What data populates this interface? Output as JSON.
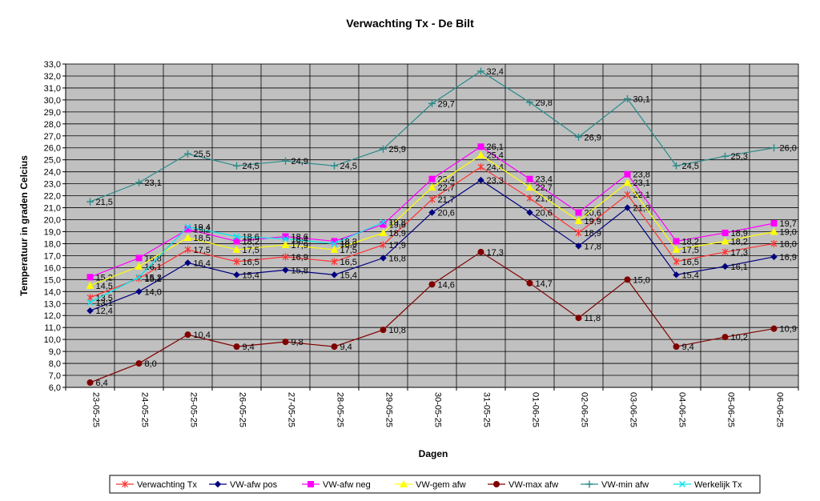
{
  "chart_data": {
    "type": "line",
    "title": "Verwachting Tx - De Bilt",
    "xlabel": "Dagen",
    "ylabel": "Temperatuur in graden Celcius",
    "ylim": [
      6,
      33
    ],
    "grid": true,
    "legend_position": "bottom",
    "plot_background": "#c0c0c0",
    "categories": [
      "23-05-25",
      "24-05-25",
      "25-05-25",
      "26-05-25",
      "27-05-25",
      "28-05-25",
      "29-05-25",
      "30-05-25",
      "31-05-25",
      "01-06-25",
      "02-06-25",
      "03-06-25",
      "04-06-25",
      "05-06-25",
      "06-06-25"
    ],
    "yticks": [
      "6,0",
      "7,0",
      "8,0",
      "9,0",
      "10,0",
      "11,0",
      "12,0",
      "13,0",
      "14,0",
      "15,0",
      "16,0",
      "17,0",
      "18,0",
      "19,0",
      "20,0",
      "21,0",
      "22,0",
      "23,0",
      "24,0",
      "25,0",
      "26,0",
      "27,0",
      "28,0",
      "29,0",
      "30,0",
      "31,0",
      "32,0",
      "33,0"
    ],
    "series": [
      {
        "name": "Verwachting Tx",
        "color": "#ff3333",
        "marker": "star",
        "values": [
          13.5,
          15.1,
          17.5,
          16.5,
          16.9,
          16.5,
          17.9,
          21.7,
          24.4,
          21.8,
          18.9,
          22.1,
          16.5,
          17.3,
          18.0
        ],
        "labels": [
          "13,5",
          "15,1",
          "17,5",
          "16,5",
          "16,9",
          "16,5",
          "17,9",
          "21,7",
          "24,4",
          "21,8",
          "18,9",
          "22,1",
          "16,5",
          "17,3",
          "18,0"
        ]
      },
      {
        "name": "VW-afw pos",
        "color": "#000080",
        "marker": "diamond",
        "values": [
          12.4,
          14.0,
          16.4,
          15.4,
          15.8,
          15.4,
          16.8,
          20.6,
          23.3,
          20.6,
          17.8,
          21.0,
          15.4,
          16.1,
          16.9
        ],
        "labels": [
          "12,4",
          "14,0",
          "16,4",
          "15,4",
          "15,8",
          "15,4",
          "16,8",
          "20,6",
          "23,3",
          "20,6",
          "17,8",
          "21,0",
          "15,4",
          "16,1",
          "16,9"
        ]
      },
      {
        "name": "VW-afw neg",
        "color": "#ff00ff",
        "marker": "square",
        "values": [
          15.2,
          16.8,
          19.2,
          18.2,
          18.6,
          18.2,
          19.6,
          23.4,
          26.1,
          23.4,
          20.6,
          23.8,
          18.2,
          18.9,
          19.7
        ],
        "labels": [
          "15,2",
          "16,8",
          "19,2",
          "18,2",
          "18,6",
          "18,2",
          "19,6",
          "23,4",
          "26,1",
          "23,4",
          "20,6",
          "23,8",
          "18,2",
          "18,9",
          "19,7"
        ]
      },
      {
        "name": "VW-gem afw",
        "color": "#ffff00",
        "marker": "triangle",
        "values": [
          14.5,
          16.1,
          18.5,
          17.5,
          17.9,
          17.5,
          18.9,
          22.7,
          25.4,
          22.7,
          19.9,
          23.1,
          17.5,
          18.2,
          19.0
        ],
        "labels": [
          "14,5",
          "16,1",
          "18,5",
          "17,5",
          "17,9",
          "17,5",
          "18,9",
          "22,7",
          "25,4",
          "22,7",
          "19,9",
          "23,1",
          "17,5",
          "18,2",
          "19,0"
        ]
      },
      {
        "name": "VW-max afw",
        "color": "#800000",
        "marker": "circle",
        "values": [
          6.4,
          8.0,
          10.4,
          9.4,
          9.8,
          9.4,
          10.8,
          14.6,
          17.3,
          14.7,
          11.8,
          15.0,
          9.4,
          10.2,
          10.9
        ],
        "labels": [
          "6,4",
          "8,0",
          "10,4",
          "9,4",
          "9,8",
          "9,4",
          "10,8",
          "14,6",
          "17,3",
          "14,7",
          "11,8",
          "15,0",
          "9,4",
          "10,2",
          "10,9"
        ]
      },
      {
        "name": "VW-min afw",
        "color": "#2a8a8a",
        "marker": "plus",
        "values": [
          21.5,
          23.1,
          25.5,
          24.5,
          24.9,
          24.5,
          25.9,
          29.7,
          32.4,
          29.8,
          26.9,
          30.1,
          24.5,
          25.3,
          26.0
        ],
        "labels": [
          "21,5",
          "23,1",
          "25,5",
          "24,5",
          "24,9",
          "24,5",
          "25,9",
          "29,7",
          "32,4",
          "29,8",
          "26,9",
          "30,1",
          "24,5",
          "25,3",
          "26,0"
        ]
      },
      {
        "name": "Werkelijk Tx",
        "color": "#00e5ee",
        "marker": "x",
        "values": [
          13.1,
          15.2,
          19.4,
          18.6,
          18.4,
          18.0,
          19.8,
          null,
          null,
          null,
          null,
          null,
          null,
          null,
          null
        ],
        "labels": [
          "13,1",
          "15,2",
          "19,4",
          "18,6",
          "18,4",
          "18,0",
          "19,8",
          null,
          null,
          null,
          null,
          null,
          null,
          null,
          null
        ]
      }
    ]
  }
}
